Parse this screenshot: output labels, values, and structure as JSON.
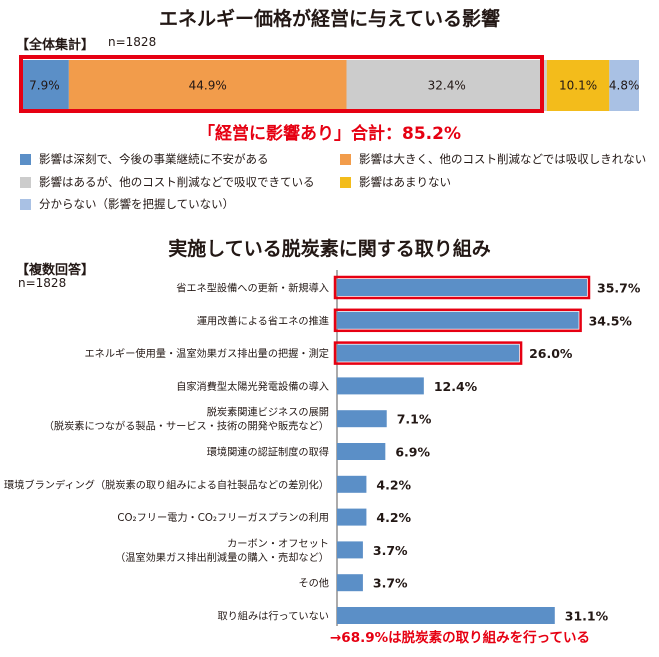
{
  "chart_data": [
    {
      "type": "bar",
      "orientation": "horizontal-stacked-100",
      "title": "エネルギー価格が経営に与えている影響",
      "tag": "【全体集計】",
      "sample": "n=1828",
      "callout": "「経営に影響あり」合計：85.2%",
      "series": [
        {
          "name": "影響は深刻で、今後の事業継続に不安がある",
          "value": 7.9,
          "label": "7.9%",
          "color": "#5b8fc7"
        },
        {
          "name": "影響は大きく、他のコスト削減などでは吸収しきれない",
          "value": 44.9,
          "label": "44.9%",
          "color": "#f29c4b"
        },
        {
          "name": "影響はあるが、他のコスト削減などで吸収できている",
          "value": 32.4,
          "label": "32.4%",
          "color": "#cccccc"
        },
        {
          "name": "影響はあまりない",
          "value": 10.1,
          "label": "10.1%",
          "color": "#f3bc1b"
        },
        {
          "name": "分からない（影響を把握していない）",
          "value": 4.8,
          "label": "4.8%",
          "color": "#a9c1e4"
        }
      ],
      "xlim": [
        0,
        100
      ]
    },
    {
      "type": "bar",
      "orientation": "horizontal",
      "title": "実施している脱炭素に関する取り組み",
      "tag": "【複数回答】",
      "sample": "n=1828",
      "callout": "→68.9%は脱炭素の取り組みを行っている",
      "bar_color": "#5b8fc7",
      "highlight_color": "#e60012",
      "xlim": [
        0,
        40
      ],
      "categories": [
        {
          "lines": [
            "省エネ型設備への更新・新規導入"
          ],
          "value": 35.7,
          "label": "35.7%",
          "highlighted": true
        },
        {
          "lines": [
            "運用改善による省エネの推進"
          ],
          "value": 34.5,
          "label": "34.5%",
          "highlighted": true
        },
        {
          "lines": [
            "エネルギー使用量・温室効果ガス排出量の把握・測定"
          ],
          "value": 26.0,
          "label": "26.0%",
          "highlighted": true
        },
        {
          "lines": [
            "自家消費型太陽光発電設備の導入"
          ],
          "value": 12.4,
          "label": "12.4%",
          "highlighted": false
        },
        {
          "lines": [
            "脱炭素関連ビジネスの展開",
            "（脱炭素につながる製品・サービス・技術の開発や販売など）"
          ],
          "value": 7.1,
          "label": "7.1%",
          "highlighted": false
        },
        {
          "lines": [
            "環境関連の認証制度の取得"
          ],
          "value": 6.9,
          "label": "6.9%",
          "highlighted": false
        },
        {
          "lines": [
            "環境ブランディング（脱炭素の取り組みによる自社製品などの差別化）"
          ],
          "value": 4.2,
          "label": "4.2%",
          "highlighted": false
        },
        {
          "lines": [
            "CO₂フリー電力・CO₂フリーガスプランの利用"
          ],
          "value": 4.2,
          "label": "4.2%",
          "highlighted": false
        },
        {
          "lines": [
            "カーボン・オフセット",
            "（温室効果ガス排出削減量の購入・売却など）"
          ],
          "value": 3.7,
          "label": "3.7%",
          "highlighted": false
        },
        {
          "lines": [
            "その他"
          ],
          "value": 3.7,
          "label": "3.7%",
          "highlighted": false
        },
        {
          "lines": [
            "取り組みは行っていない"
          ],
          "value": 31.1,
          "label": "31.1%",
          "highlighted": false
        }
      ]
    }
  ]
}
